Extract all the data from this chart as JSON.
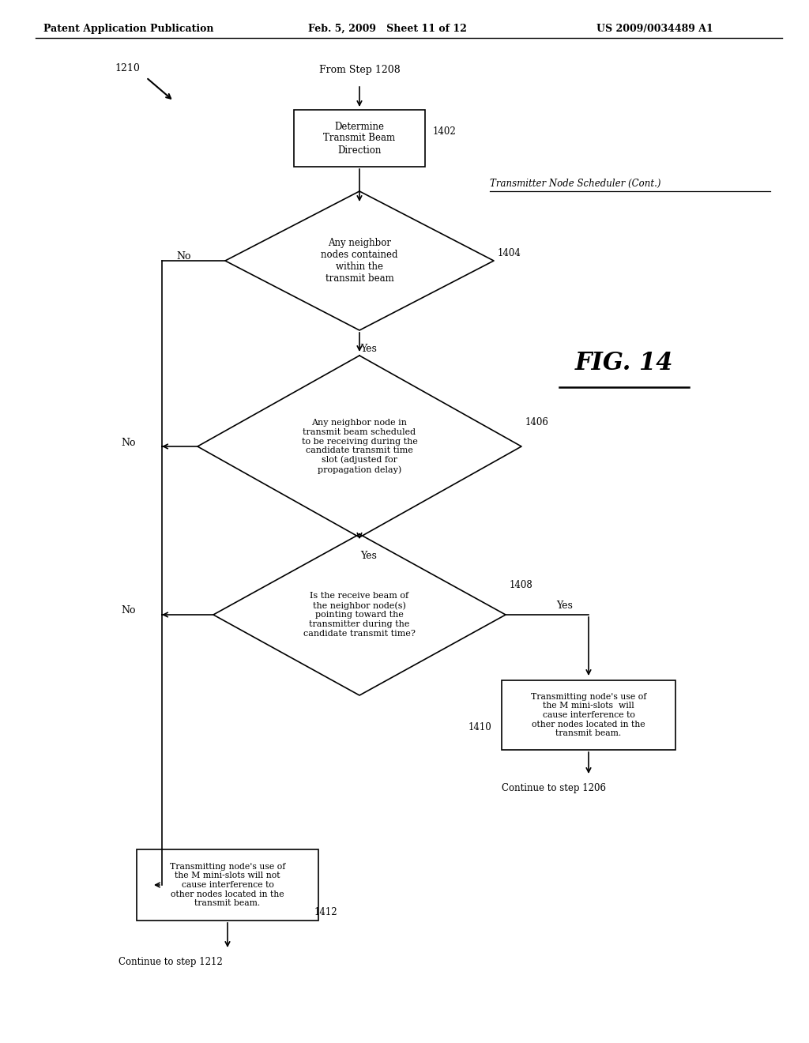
{
  "header_left": "Patent Application Publication",
  "header_mid": "Feb. 5, 2009   Sheet 11 of 12",
  "header_right": "US 2009/0034489 A1",
  "fig_label": "FIG. 14",
  "label_1210": "1210",
  "label_from": "From Step 1208",
  "label_cont": "Transmitter Node Scheduler (Cont.)",
  "box1402_text": "Determine\nTransmit Beam\nDirection",
  "box1402_label": "1402",
  "diamond1404_text": "Any neighbor\nnodes contained\nwithin the\ntransmit beam",
  "diamond1404_label": "1404",
  "diamond1406_text": "Any neighbor node in\ntransmit beam scheduled\nto be receiving during the\ncandidate transmit time\nslot (adjusted for\npropagation delay)",
  "diamond1406_label": "1406",
  "diamond1408_text": "Is the receive beam of\nthe neighbor node(s)\npointing toward the\ntransmitter during the\ncandidate transmit time?",
  "diamond1408_label": "1408",
  "box1410_text": "Transmitting node's use of\nthe M mini-slots  will\ncause interference to\nother nodes located in the\ntransmit beam.",
  "box1410_label": "1410",
  "box1412_text": "Transmitting node's use of\nthe M mini-slots will not\ncause interference to\nother nodes located in the\ntransmit beam.",
  "box1412_label": "1412",
  "cont_1206": "Continue to step 1206",
  "cont_1212": "Continue to step 1212",
  "bg_color": "#ffffff",
  "line_color": "#000000",
  "text_color": "#000000"
}
